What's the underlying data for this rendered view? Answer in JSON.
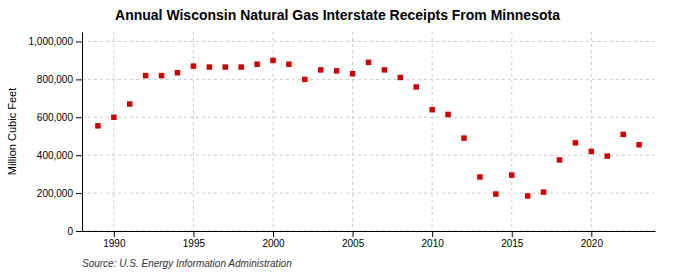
{
  "chart_data": {
    "type": "scatter",
    "title": "Annual Wisconsin Natural Gas Interstate Receipts From Minnesota",
    "y_label": "Million Cubic Feet",
    "source": "Source: U.S. Energy Information Administration",
    "x": [
      1989,
      1990,
      1991,
      1992,
      1993,
      1994,
      1995,
      1996,
      1997,
      1998,
      1999,
      2000,
      2001,
      2002,
      2003,
      2004,
      2005,
      2006,
      2007,
      2008,
      2009,
      2010,
      2011,
      2012,
      2013,
      2014,
      2015,
      2016,
      2017,
      2018,
      2019,
      2020,
      2021,
      2022,
      2023
    ],
    "values": [
      555000,
      600000,
      670000,
      820000,
      820000,
      835000,
      870000,
      865000,
      865000,
      865000,
      880000,
      900000,
      880000,
      800000,
      850000,
      845000,
      830000,
      890000,
      850000,
      810000,
      760000,
      640000,
      615000,
      490000,
      285000,
      195000,
      295000,
      185000,
      205000,
      375000,
      465000,
      420000,
      395000,
      510000,
      455000
    ],
    "color": "#cc0000",
    "marker": "square",
    "xlim": [
      1988,
      2024
    ],
    "ylim": [
      0,
      1050000
    ],
    "xticks": [
      1990,
      1995,
      2000,
      2005,
      2010,
      2015,
      2020
    ],
    "yticks": [
      0,
      {
        "value": 200000,
        "label": "200,000"
      },
      {
        "value": 400000,
        "label": "400,000"
      },
      {
        "value": 600000,
        "label": "600,000"
      },
      {
        "value": 800000,
        "label": "800,000"
      },
      {
        "value": 1000000,
        "label": "1,000,000"
      }
    ],
    "grid": true
  }
}
